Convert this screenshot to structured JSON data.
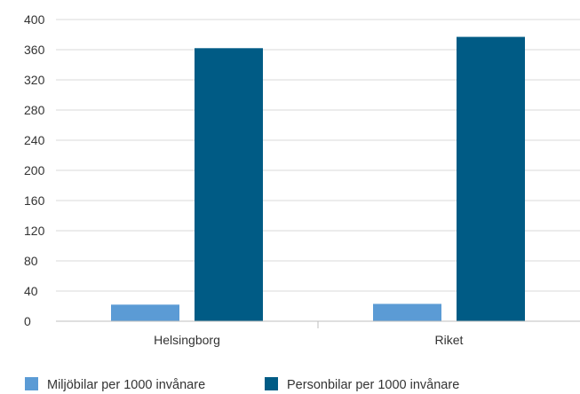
{
  "chart_data": {
    "type": "bar",
    "categories": [
      "Helsingborg",
      "Riket"
    ],
    "series": [
      {
        "name": "Miljöbilar per 1000 invånare",
        "values": [
          22,
          23
        ],
        "color": "#5b9bd5"
      },
      {
        "name": "Personbilar per 1000 invånare",
        "values": [
          362,
          377
        ],
        "color": "#005b85"
      }
    ],
    "ylim": [
      0,
      400
    ],
    "yticks": [
      0,
      40,
      80,
      120,
      160,
      200,
      240,
      280,
      320,
      360,
      400
    ],
    "grid": true,
    "legend": "bottom-left"
  }
}
